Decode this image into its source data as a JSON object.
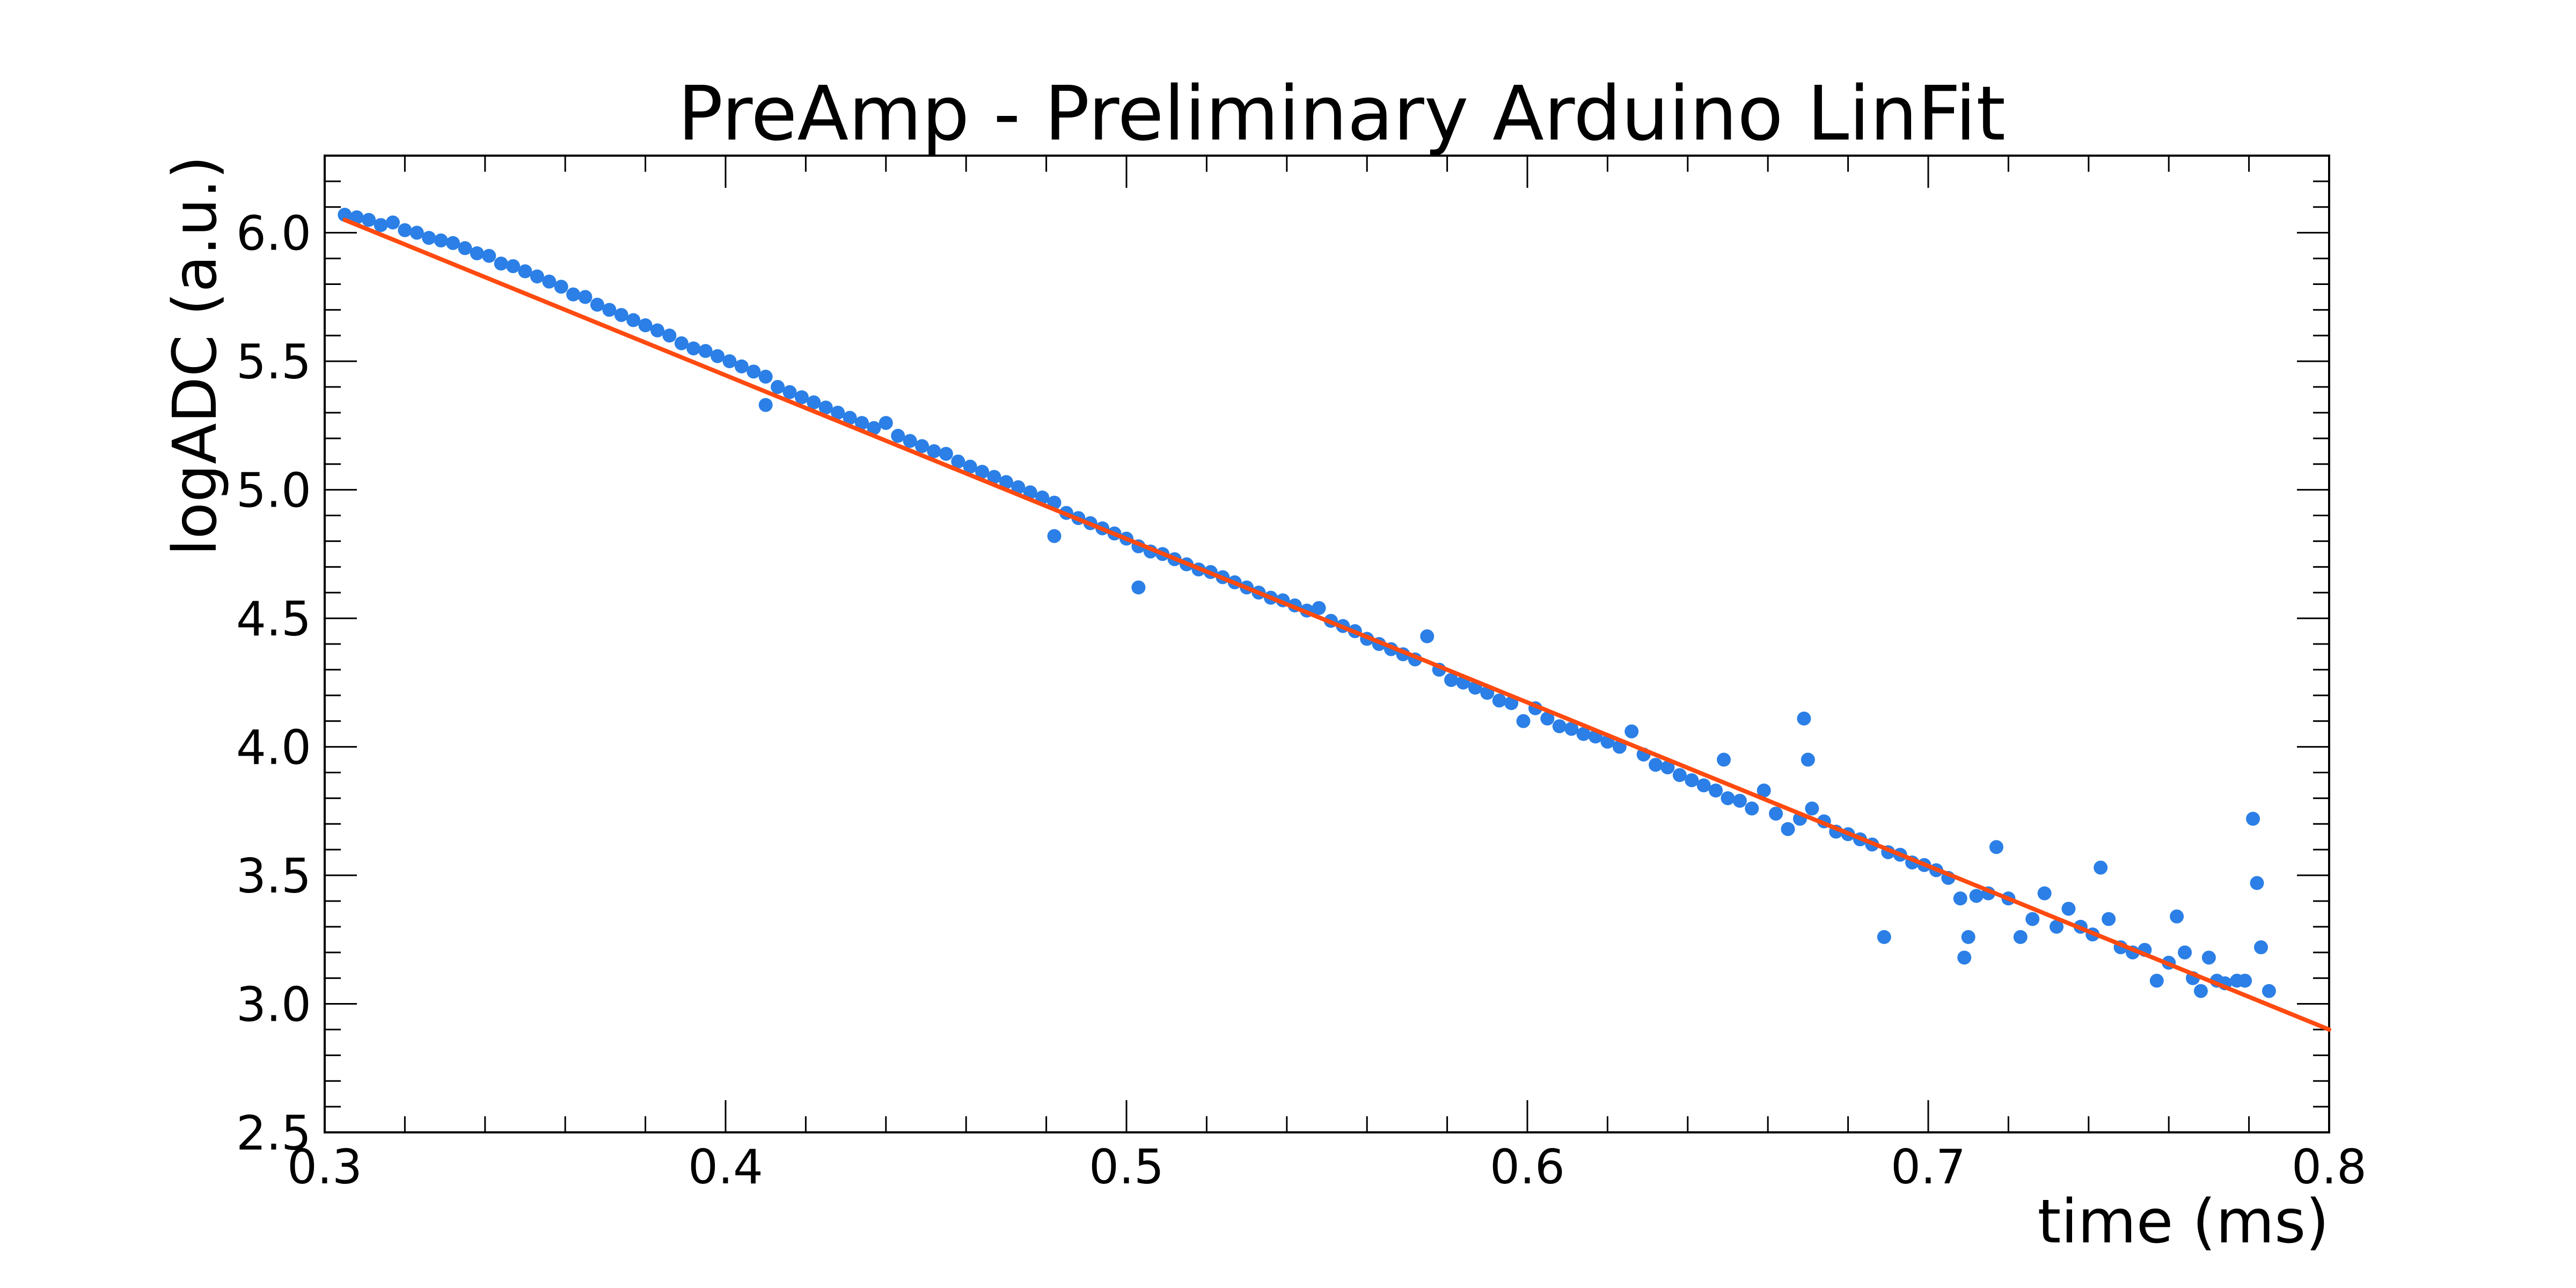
{
  "chart_data": {
    "type": "scatter",
    "title": "PreAmp - Preliminary Arduino LinFit",
    "xlabel": "time (ms)",
    "ylabel": "logADC (a.u.)",
    "xlim": [
      0.3,
      0.8
    ],
    "ylim": [
      2.5,
      6.3
    ],
    "x_ticks": [
      "0.3",
      "0.4",
      "0.5",
      "0.6",
      "0.7",
      "0.8"
    ],
    "y_ticks": [
      "2.5",
      "3.0",
      "3.5",
      "4.0",
      "4.5",
      "5.0",
      "5.5",
      "6.0"
    ],
    "grid": false,
    "legend": "none",
    "colors": {
      "points": "#2b7fe6",
      "fit": "#ff4a10",
      "frame": "#000000"
    },
    "series": [
      {
        "type": "scatter",
        "points": [
          [
            0.305,
            6.07
          ],
          [
            0.308,
            6.06
          ],
          [
            0.311,
            6.05
          ],
          [
            0.314,
            6.03
          ],
          [
            0.317,
            6.04
          ],
          [
            0.32,
            6.01
          ],
          [
            0.323,
            6.0
          ],
          [
            0.326,
            5.98
          ],
          [
            0.329,
            5.97
          ],
          [
            0.332,
            5.96
          ],
          [
            0.335,
            5.94
          ],
          [
            0.338,
            5.92
          ],
          [
            0.341,
            5.91
          ],
          [
            0.344,
            5.88
          ],
          [
            0.347,
            5.87
          ],
          [
            0.35,
            5.85
          ],
          [
            0.353,
            5.83
          ],
          [
            0.356,
            5.81
          ],
          [
            0.359,
            5.79
          ],
          [
            0.362,
            5.76
          ],
          [
            0.365,
            5.75
          ],
          [
            0.368,
            5.72
          ],
          [
            0.371,
            5.7
          ],
          [
            0.374,
            5.68
          ],
          [
            0.377,
            5.66
          ],
          [
            0.38,
            5.64
          ],
          [
            0.383,
            5.62
          ],
          [
            0.386,
            5.6
          ],
          [
            0.389,
            5.57
          ],
          [
            0.392,
            5.55
          ],
          [
            0.395,
            5.54
          ],
          [
            0.398,
            5.52
          ],
          [
            0.401,
            5.5
          ],
          [
            0.404,
            5.48
          ],
          [
            0.407,
            5.46
          ],
          [
            0.41,
            5.44
          ],
          [
            0.41,
            5.33
          ],
          [
            0.413,
            5.4
          ],
          [
            0.416,
            5.38
          ],
          [
            0.419,
            5.36
          ],
          [
            0.422,
            5.34
          ],
          [
            0.425,
            5.32
          ],
          [
            0.428,
            5.3
          ],
          [
            0.431,
            5.28
          ],
          [
            0.434,
            5.26
          ],
          [
            0.437,
            5.24
          ],
          [
            0.44,
            5.26
          ],
          [
            0.443,
            5.21
          ],
          [
            0.446,
            5.19
          ],
          [
            0.449,
            5.17
          ],
          [
            0.452,
            5.15
          ],
          [
            0.455,
            5.14
          ],
          [
            0.458,
            5.11
          ],
          [
            0.461,
            5.09
          ],
          [
            0.464,
            5.07
          ],
          [
            0.467,
            5.05
          ],
          [
            0.47,
            5.03
          ],
          [
            0.473,
            5.01
          ],
          [
            0.476,
            4.99
          ],
          [
            0.479,
            4.97
          ],
          [
            0.482,
            4.95
          ],
          [
            0.482,
            4.82
          ],
          [
            0.485,
            4.91
          ],
          [
            0.488,
            4.89
          ],
          [
            0.491,
            4.87
          ],
          [
            0.494,
            4.85
          ],
          [
            0.497,
            4.83
          ],
          [
            0.5,
            4.81
          ],
          [
            0.503,
            4.62
          ],
          [
            0.503,
            4.78
          ],
          [
            0.506,
            4.76
          ],
          [
            0.509,
            4.75
          ],
          [
            0.512,
            4.73
          ],
          [
            0.515,
            4.71
          ],
          [
            0.518,
            4.69
          ],
          [
            0.521,
            4.68
          ],
          [
            0.524,
            4.66
          ],
          [
            0.527,
            4.64
          ],
          [
            0.53,
            4.62
          ],
          [
            0.533,
            4.6
          ],
          [
            0.536,
            4.58
          ],
          [
            0.539,
            4.57
          ],
          [
            0.542,
            4.55
          ],
          [
            0.545,
            4.53
          ],
          [
            0.548,
            4.54
          ],
          [
            0.551,
            4.49
          ],
          [
            0.554,
            4.47
          ],
          [
            0.557,
            4.45
          ],
          [
            0.56,
            4.42
          ],
          [
            0.563,
            4.4
          ],
          [
            0.566,
            4.38
          ],
          [
            0.569,
            4.36
          ],
          [
            0.572,
            4.34
          ],
          [
            0.575,
            4.43
          ],
          [
            0.578,
            4.3
          ],
          [
            0.581,
            4.26
          ],
          [
            0.584,
            4.25
          ],
          [
            0.587,
            4.23
          ],
          [
            0.59,
            4.21
          ],
          [
            0.593,
            4.18
          ],
          [
            0.596,
            4.17
          ],
          [
            0.599,
            4.1
          ],
          [
            0.602,
            4.15
          ],
          [
            0.605,
            4.11
          ],
          [
            0.608,
            4.08
          ],
          [
            0.611,
            4.07
          ],
          [
            0.614,
            4.05
          ],
          [
            0.617,
            4.04
          ],
          [
            0.62,
            4.02
          ],
          [
            0.623,
            4.0
          ],
          [
            0.626,
            4.06
          ],
          [
            0.629,
            3.97
          ],
          [
            0.632,
            3.93
          ],
          [
            0.635,
            3.92
          ],
          [
            0.638,
            3.89
          ],
          [
            0.641,
            3.87
          ],
          [
            0.644,
            3.85
          ],
          [
            0.647,
            3.83
          ],
          [
            0.649,
            3.95
          ],
          [
            0.65,
            3.8
          ],
          [
            0.653,
            3.79
          ],
          [
            0.656,
            3.76
          ],
          [
            0.659,
            3.83
          ],
          [
            0.662,
            3.74
          ],
          [
            0.665,
            3.68
          ],
          [
            0.668,
            3.72
          ],
          [
            0.669,
            4.11
          ],
          [
            0.67,
            3.95
          ],
          [
            0.671,
            3.76
          ],
          [
            0.674,
            3.71
          ],
          [
            0.677,
            3.67
          ],
          [
            0.68,
            3.66
          ],
          [
            0.683,
            3.64
          ],
          [
            0.686,
            3.62
          ],
          [
            0.689,
            3.26
          ],
          [
            0.69,
            3.59
          ],
          [
            0.693,
            3.58
          ],
          [
            0.696,
            3.55
          ],
          [
            0.699,
            3.54
          ],
          [
            0.702,
            3.52
          ],
          [
            0.705,
            3.49
          ],
          [
            0.708,
            3.41
          ],
          [
            0.709,
            3.18
          ],
          [
            0.71,
            3.26
          ],
          [
            0.712,
            3.42
          ],
          [
            0.715,
            3.43
          ],
          [
            0.717,
            3.61
          ],
          [
            0.72,
            3.41
          ],
          [
            0.723,
            3.26
          ],
          [
            0.726,
            3.33
          ],
          [
            0.729,
            3.43
          ],
          [
            0.732,
            3.3
          ],
          [
            0.735,
            3.37
          ],
          [
            0.738,
            3.3
          ],
          [
            0.741,
            3.27
          ],
          [
            0.743,
            3.53
          ],
          [
            0.745,
            3.33
          ],
          [
            0.748,
            3.22
          ],
          [
            0.751,
            3.2
          ],
          [
            0.754,
            3.21
          ],
          [
            0.757,
            3.09
          ],
          [
            0.76,
            3.16
          ],
          [
            0.762,
            3.34
          ],
          [
            0.764,
            3.2
          ],
          [
            0.766,
            3.1
          ],
          [
            0.768,
            3.05
          ],
          [
            0.77,
            3.18
          ],
          [
            0.772,
            3.09
          ],
          [
            0.774,
            3.08
          ],
          [
            0.777,
            3.09
          ],
          [
            0.779,
            3.09
          ],
          [
            0.781,
            3.72
          ],
          [
            0.782,
            3.47
          ],
          [
            0.783,
            3.22
          ],
          [
            0.785,
            3.05
          ]
        ]
      },
      {
        "type": "line",
        "points": [
          [
            0.305,
            6.05
          ],
          [
            0.8,
            2.9
          ]
        ]
      }
    ]
  }
}
